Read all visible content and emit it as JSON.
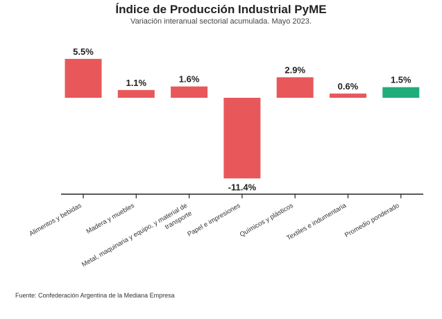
{
  "chart_data": {
    "type": "bar",
    "title": "Índice de Producción Industrial PyME",
    "subtitle": "Variación interanual sectorial acumulada. Mayo 2023.",
    "categories": [
      "Alimentos y bebidas",
      "Madera y muebles",
      "Metal, maquinaria y equipo, y material de transporte",
      "Papel e impresiones",
      "Químicos y plásticos",
      "Textiles e indumentaria",
      "Promedio ponderado"
    ],
    "category_lines": [
      [
        "Alimentos y bebidas"
      ],
      [
        "Madera y muebles"
      ],
      [
        "Metal, maquinaria y equipo, y material de",
        "transporte"
      ],
      [
        "Papel e impresiones"
      ],
      [
        "Químicos y plásticos"
      ],
      [
        "Textiles e indumentaria"
      ],
      [
        "Promedio ponderado"
      ]
    ],
    "values": [
      5.5,
      1.1,
      1.6,
      -11.4,
      2.9,
      0.6,
      1.5
    ],
    "data_labels": [
      "5.5%",
      "1.1%",
      "1.6%",
      "-11.4%",
      "2.9%",
      "0.6%",
      "1.5%"
    ],
    "bar_colors": [
      "#e8585a",
      "#e8585a",
      "#e8585a",
      "#e8585a",
      "#e8585a",
      "#e8585a",
      "#1fad79"
    ],
    "xlabel": "",
    "ylabel": "",
    "grid": false,
    "legend": "none"
  },
  "source": "Fuente: Confederación Argentina de la Mediana Empresa"
}
